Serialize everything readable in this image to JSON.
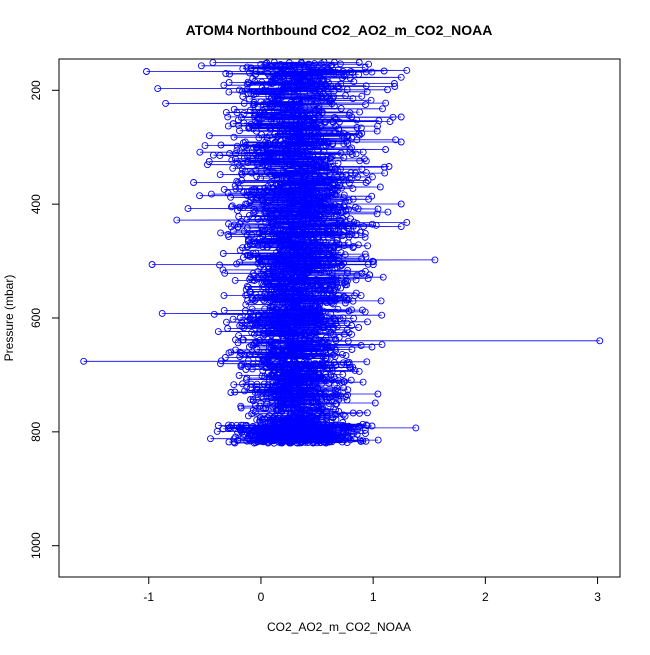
{
  "chart_data": {
    "type": "scatter",
    "title": "ATOM4 Northbound CO2_AO2_m_CO2_NOAA",
    "xlabel": "CO2_AO2_m_CO2_NOAA",
    "ylabel": "Pressure (mbar)",
    "xlim": [
      -1.8,
      3.2
    ],
    "ylim": [
      1055,
      145
    ],
    "y_reversed": true,
    "x_ticks": [
      -1,
      0,
      1,
      2,
      3
    ],
    "x_tick_labels": [
      "-1",
      "0",
      "1",
      "2",
      "3"
    ],
    "y_ticks": [
      200,
      400,
      600,
      800,
      1000
    ],
    "y_tick_labels": [
      "200",
      "400",
      "600",
      "800",
      "1000"
    ],
    "grid": false,
    "legend": "none",
    "marker": "open-circle",
    "connected": true,
    "color": "#0000ff",
    "series": [
      {
        "points_sample": [
          {
            "x": -1.02,
            "y": 167
          },
          {
            "x": 1.3,
            "y": 165
          },
          {
            "x": -0.92,
            "y": 197
          },
          {
            "x": 1.15,
            "y": 255
          },
          {
            "x": -0.85,
            "y": 223
          },
          {
            "x": 1.2,
            "y": 287
          },
          {
            "x": -0.6,
            "y": 362
          },
          {
            "x": 1.1,
            "y": 335
          },
          {
            "x": -0.75,
            "y": 428
          },
          {
            "x": 1.3,
            "y": 432
          },
          {
            "x": -0.97,
            "y": 506
          },
          {
            "x": 1.55,
            "y": 498
          },
          {
            "x": -0.88,
            "y": 592
          },
          {
            "x": -1.58,
            "y": 676
          },
          {
            "x": 3.02,
            "y": 640
          },
          {
            "x": -0.45,
            "y": 812
          },
          {
            "x": 1.38,
            "y": 793
          },
          {
            "x": 0.3,
            "y": 815
          }
        ]
      }
    ]
  }
}
